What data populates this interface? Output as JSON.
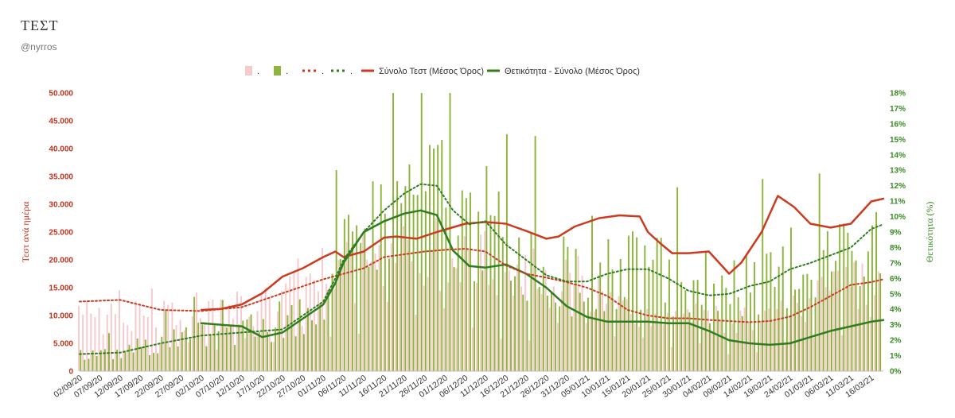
{
  "header": {
    "title": "ΤΕΣΤ",
    "subtitle": "@nyrros"
  },
  "colors": {
    "tests_bar": "#f6c9cc",
    "positivity_bar": "#8db53c",
    "tests_line": "#cc3b1f",
    "positivity_line": "#2f7d1f",
    "left_axis": "#c0321b",
    "right_axis": "#3a8a24"
  },
  "legend": [
    {
      "label": ".",
      "kind": "bar",
      "color": "#f6c9cc"
    },
    {
      "label": ".",
      "kind": "bar",
      "color": "#8db53c"
    },
    {
      "label": ".",
      "kind": "dotted",
      "color": "#cc3b1f"
    },
    {
      "label": ".",
      "kind": "dotted",
      "color": "#2f7d1f"
    },
    {
      "label": "Σύνολο Τεστ (Μέσος Όρος)",
      "kind": "line",
      "color": "#cc3b1f"
    },
    {
      "label": "Θετικότητα - Σύνολο (Μέσος Όρος)",
      "kind": "line",
      "color": "#2f7d1f"
    }
  ],
  "chart_data": {
    "type": "bar",
    "title": "ΤΕΣΤ",
    "ylabel": "Τεστ ανά ημέρα",
    "ylabel_right": "Θετικότητα (%)",
    "ylim": [
      0,
      50000
    ],
    "ylim_right": [
      0,
      0.18
    ],
    "yticks": [
      "0",
      "5.000",
      "10.000",
      "15.000",
      "20.000",
      "25.000",
      "30.000",
      "35.000",
      "40.000",
      "45.000",
      "50.000"
    ],
    "yticks_right": [
      "0%",
      "1%",
      "2%",
      "3%",
      "4%",
      "5%",
      "6%",
      "7%",
      "8%",
      "9%",
      "10%",
      "11%",
      "12%",
      "13%",
      "14%",
      "15%",
      "16%",
      "17%",
      "18%"
    ],
    "x_start": "2020-09-02",
    "num_days": 198,
    "xtick_labels": [
      "02/09/20",
      "07/09/20",
      "12/09/20",
      "17/09/20",
      "22/09/20",
      "27/09/20",
      "02/10/20",
      "07/10/20",
      "12/10/20",
      "17/10/20",
      "22/10/20",
      "27/10/20",
      "01/11/20",
      "06/11/20",
      "11/11/20",
      "16/11/20",
      "21/11/20",
      "26/11/20",
      "01/12/20",
      "06/12/20",
      "11/12/20",
      "16/12/20",
      "21/12/20",
      "26/12/20",
      "31/12/20",
      "05/01/21",
      "10/01/21",
      "15/01/21",
      "20/01/21",
      "25/01/21",
      "30/01/21",
      "04/02/21",
      "09/02/21",
      "14/02/21",
      "19/02/21",
      "24/02/21",
      "01/03/21",
      "06/03/21",
      "11/03/21",
      "16/03/21"
    ],
    "series": [
      {
        "name": "Σύνολο Τεστ (Μέσος Όρος)",
        "axis": "left",
        "points": [
          [
            30,
            11000
          ],
          [
            35,
            11200
          ],
          [
            40,
            12000
          ],
          [
            45,
            14000
          ],
          [
            50,
            17000
          ],
          [
            55,
            18500
          ],
          [
            60,
            20500
          ],
          [
            63,
            21500
          ],
          [
            65,
            20500
          ],
          [
            70,
            21500
          ],
          [
            75,
            24000
          ],
          [
            78,
            24200
          ],
          [
            83,
            23800
          ],
          [
            88,
            25000
          ],
          [
            95,
            26500
          ],
          [
            100,
            26800
          ],
          [
            105,
            26500
          ],
          [
            110,
            25200
          ],
          [
            115,
            23800
          ],
          [
            118,
            24200
          ],
          [
            122,
            26000
          ],
          [
            128,
            27500
          ],
          [
            133,
            28000
          ],
          [
            138,
            27800
          ],
          [
            140,
            25000
          ],
          [
            143,
            23000
          ],
          [
            146,
            21200
          ],
          [
            150,
            21200
          ],
          [
            155,
            21500
          ],
          [
            160,
            17500
          ],
          [
            163,
            19500
          ],
          [
            168,
            25000
          ],
          [
            172,
            31500
          ],
          [
            176,
            29500
          ],
          [
            180,
            26500
          ],
          [
            185,
            25800
          ],
          [
            190,
            26500
          ],
          [
            195,
            30500
          ],
          [
            198,
            31000
          ]
        ]
      },
      {
        "name": "Θετικότητα - Σύνολο (Μέσος Όρος)",
        "axis": "right",
        "points": [
          [
            30,
            0.031
          ],
          [
            35,
            0.03
          ],
          [
            40,
            0.029
          ],
          [
            45,
            0.022
          ],
          [
            50,
            0.025
          ],
          [
            55,
            0.034
          ],
          [
            60,
            0.043
          ],
          [
            63,
            0.057
          ],
          [
            65,
            0.07
          ],
          [
            70,
            0.09
          ],
          [
            75,
            0.097
          ],
          [
            80,
            0.102
          ],
          [
            84,
            0.104
          ],
          [
            88,
            0.101
          ],
          [
            92,
            0.078
          ],
          [
            96,
            0.068
          ],
          [
            100,
            0.067
          ],
          [
            105,
            0.069
          ],
          [
            110,
            0.063
          ],
          [
            115,
            0.054
          ],
          [
            120,
            0.042
          ],
          [
            125,
            0.035
          ],
          [
            130,
            0.032
          ],
          [
            135,
            0.032
          ],
          [
            140,
            0.032
          ],
          [
            145,
            0.031
          ],
          [
            150,
            0.031
          ],
          [
            155,
            0.026
          ],
          [
            160,
            0.02
          ],
          [
            165,
            0.018
          ],
          [
            170,
            0.017
          ],
          [
            175,
            0.018
          ],
          [
            180,
            0.022
          ],
          [
            185,
            0.026
          ],
          [
            190,
            0.029
          ],
          [
            195,
            0.032
          ],
          [
            198,
            0.033
          ]
        ]
      },
      {
        "name": "",
        "style": "dotted",
        "axis": "left",
        "points": [
          [
            0,
            12500
          ],
          [
            10,
            12800
          ],
          [
            20,
            11000
          ],
          [
            30,
            10800
          ],
          [
            40,
            11500
          ],
          [
            50,
            14000
          ],
          [
            60,
            16500
          ],
          [
            65,
            17500
          ],
          [
            70,
            18500
          ],
          [
            75,
            20500
          ],
          [
            80,
            21000
          ],
          [
            85,
            21500
          ],
          [
            90,
            21800
          ],
          [
            95,
            22000
          ],
          [
            100,
            21500
          ],
          [
            105,
            19000
          ],
          [
            110,
            17500
          ],
          [
            115,
            16800
          ],
          [
            120,
            16000
          ],
          [
            125,
            15000
          ],
          [
            130,
            13500
          ],
          [
            135,
            11000
          ],
          [
            140,
            10000
          ],
          [
            145,
            9500
          ],
          [
            150,
            9500
          ],
          [
            155,
            9200
          ],
          [
            160,
            9000
          ],
          [
            165,
            8800
          ],
          [
            170,
            9000
          ],
          [
            175,
            9800
          ],
          [
            180,
            11500
          ],
          [
            185,
            13500
          ],
          [
            190,
            15500
          ],
          [
            195,
            16000
          ],
          [
            198,
            16500
          ]
        ]
      },
      {
        "name": "",
        "style": "dotted",
        "axis": "right",
        "points": [
          [
            0,
            0.011
          ],
          [
            10,
            0.012
          ],
          [
            20,
            0.018
          ],
          [
            30,
            0.023
          ],
          [
            40,
            0.025
          ],
          [
            50,
            0.027
          ],
          [
            60,
            0.045
          ],
          [
            63,
            0.06
          ],
          [
            65,
            0.072
          ],
          [
            70,
            0.09
          ],
          [
            75,
            0.104
          ],
          [
            80,
            0.115
          ],
          [
            84,
            0.121
          ],
          [
            88,
            0.12
          ],
          [
            92,
            0.104
          ],
          [
            96,
            0.095
          ],
          [
            100,
            0.097
          ],
          [
            105,
            0.082
          ],
          [
            110,
            0.072
          ],
          [
            115,
            0.062
          ],
          [
            120,
            0.058
          ],
          [
            125,
            0.058
          ],
          [
            130,
            0.063
          ],
          [
            135,
            0.066
          ],
          [
            140,
            0.066
          ],
          [
            145,
            0.06
          ],
          [
            150,
            0.052
          ],
          [
            155,
            0.049
          ],
          [
            160,
            0.05
          ],
          [
            165,
            0.055
          ],
          [
            170,
            0.058
          ],
          [
            175,
            0.066
          ],
          [
            180,
            0.07
          ],
          [
            185,
            0.075
          ],
          [
            190,
            0.08
          ],
          [
            195,
            0.092
          ],
          [
            198,
            0.095
          ]
        ]
      }
    ],
    "grid": false,
    "legend_position": "top"
  }
}
